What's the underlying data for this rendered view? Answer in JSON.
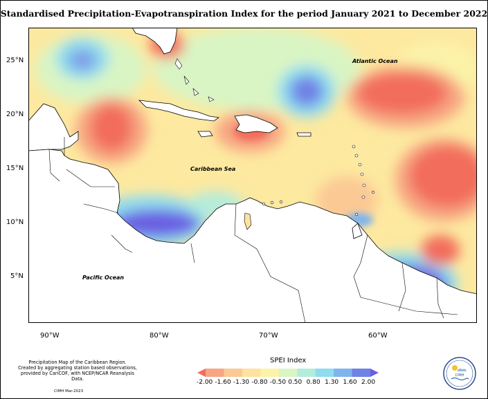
{
  "title": "Standardised Precipitation-Evapotranspiration Index for the period January 2021 to December 2022",
  "map": {
    "lat_labels": [
      "25°N",
      "20°N",
      "15°N",
      "10°N",
      "5°N"
    ],
    "lon_labels": [
      "90°W",
      "80°W",
      "70°W",
      "60°W"
    ],
    "annotations": [
      "Atlantic Ocean",
      "Caribbean Sea",
      "Pacific Ocean"
    ],
    "ocean_color": "#ffffff",
    "land_color": "#ffffff"
  },
  "legend": {
    "title": "SPEI Index",
    "ticks": [
      "-2.00",
      "-1.60",
      "-1.30",
      "-0.80",
      "-0.50",
      "0.50",
      "0.80",
      "1.30",
      "1.60",
      "2.00"
    ],
    "colors": [
      "#f26d5b",
      "#f7a582",
      "#fbc994",
      "#fde39e",
      "#fbf3a8",
      "#d9f5c4",
      "#b4ecdc",
      "#8fdcef",
      "#7fb4ec",
      "#6f82e6",
      "#6a5fe2"
    ]
  },
  "source_text": [
    "Precipitation Map of the Caribbean Region.",
    "Created by aggregating station based observations,",
    "provided by CariCOF, with NCEP/NCAR Reanalysis Data."
  ],
  "credit": "CIMH Mar-2023",
  "logo": {
    "text": "CIMH"
  }
}
